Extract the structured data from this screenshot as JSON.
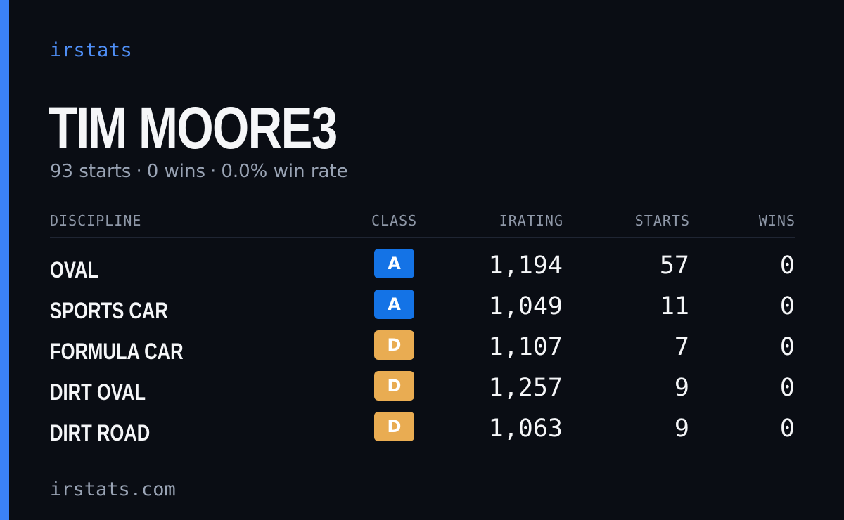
{
  "brand": {
    "label": "irstats",
    "accent_color": "#3b82f6"
  },
  "driver": {
    "name": "TIM MOORE3",
    "starts_text": "93 starts",
    "wins_text": "0 wins",
    "win_rate_text": "0.0% win rate",
    "separator": "·"
  },
  "table": {
    "headers": {
      "discipline": "DISCIPLINE",
      "class": "CLASS",
      "irating": "IRATING",
      "starts": "STARTS",
      "wins": "WINS"
    },
    "rows": [
      {
        "discipline": "OVAL",
        "class": "A",
        "irating": "1,194",
        "starts": "57",
        "wins": "0"
      },
      {
        "discipline": "SPORTS CAR",
        "class": "A",
        "irating": "1,049",
        "starts": "11",
        "wins": "0"
      },
      {
        "discipline": "FORMULA CAR",
        "class": "D",
        "irating": "1,107",
        "starts": "7",
        "wins": "0"
      },
      {
        "discipline": "DIRT OVAL",
        "class": "D",
        "irating": "1,257",
        "starts": "9",
        "wins": "0"
      },
      {
        "discipline": "DIRT ROAD",
        "class": "D",
        "irating": "1,063",
        "starts": "9",
        "wins": "0"
      }
    ]
  },
  "class_colors": {
    "A": "#1473e6",
    "D": "#e9ac52"
  },
  "footer": {
    "url": "irstats.com"
  }
}
